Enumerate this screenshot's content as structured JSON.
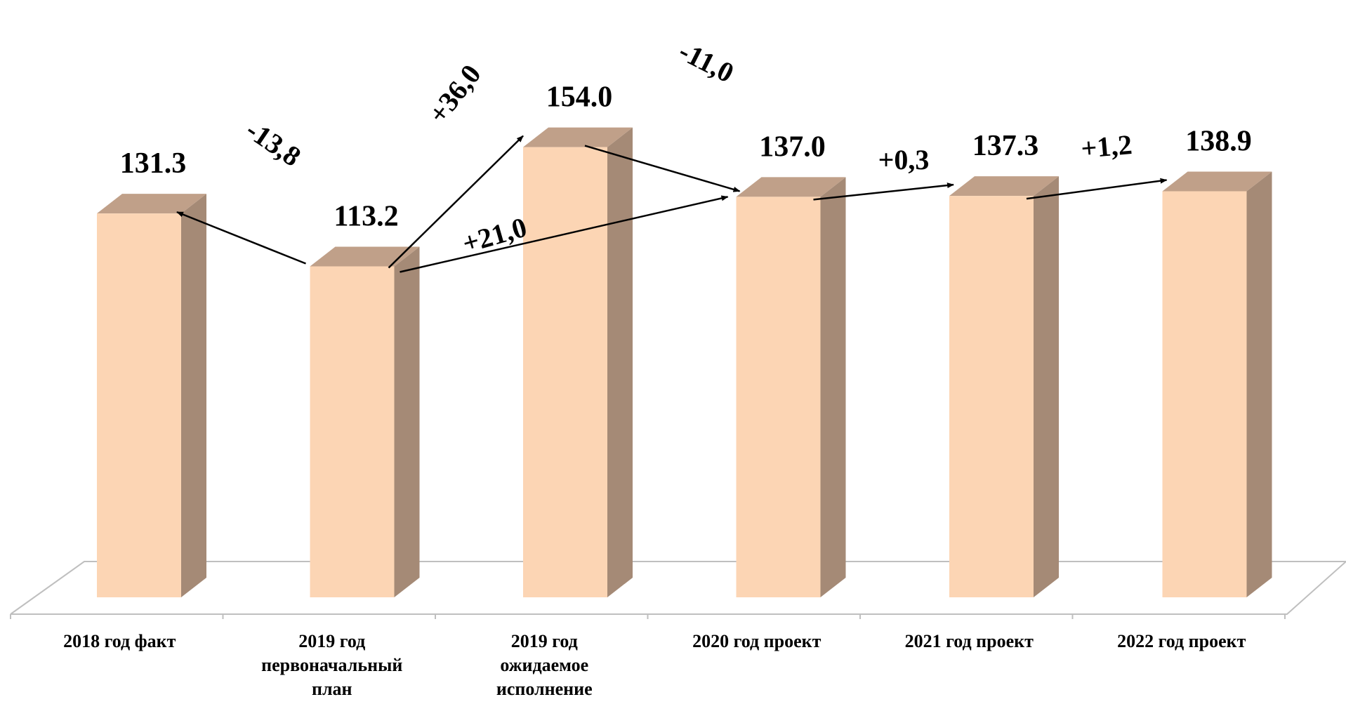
{
  "chart_data": {
    "type": "bar",
    "style": "3d-column",
    "categories": [
      "2018 год факт",
      "2019 год\nпервоначальный\nплан",
      "2019 год\nожидаемое\nисполнение",
      "2020 год проект",
      "2021 год проект",
      "2022 год проект"
    ],
    "values": [
      131.3,
      113.2,
      154.0,
      137.0,
      137.3,
      138.9
    ],
    "value_labels": [
      "131.3",
      "113.2",
      "154.0",
      "137.0",
      "137.3",
      "138.9"
    ],
    "changes": [
      {
        "from": 1,
        "to": 0,
        "label": "-13,8"
      },
      {
        "from": 1,
        "to": 2,
        "label": "+36,0"
      },
      {
        "from": 1,
        "to": 3,
        "label": "+21,0"
      },
      {
        "from": 2,
        "to": 3,
        "label": "-11,0"
      },
      {
        "from": 3,
        "to": 4,
        "label": "+0,3"
      },
      {
        "from": 4,
        "to": 5,
        "label": "+1,2"
      }
    ],
    "title": "",
    "xlabel": "",
    "ylabel": "",
    "ylim": [
      0,
      160
    ],
    "grid": false,
    "legend": "none",
    "colors": {
      "bar_front": "#fcd5b4",
      "bar_side": "#a58a76",
      "bar_top": "#c0a089",
      "floor_line": "#bfbfbf",
      "arrow": "#000000"
    }
  }
}
